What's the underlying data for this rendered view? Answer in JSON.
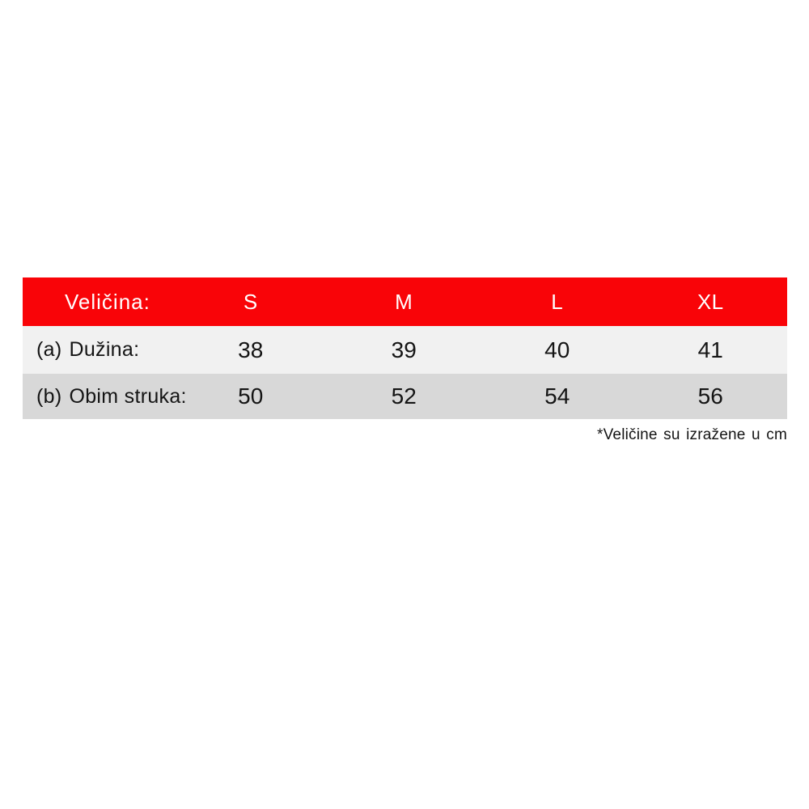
{
  "colors": {
    "page_bg": "#FFFFFF",
    "header_bg": "#F90408",
    "header_text": "#FFFFFF",
    "row_odd_bg": "#F1F1F1",
    "row_even_bg": "#D8D8D8",
    "text": "#141414"
  },
  "table": {
    "header": {
      "label": "Veličina:",
      "columns": [
        "S",
        "M",
        "L",
        "XL"
      ]
    },
    "rows": [
      {
        "prefix": "(a)",
        "label": "Dužina:",
        "values": [
          "38",
          "39",
          "40",
          "41"
        ]
      },
      {
        "prefix": "(b)",
        "label": "Obim struka:",
        "values": [
          "50",
          "52",
          "54",
          "56"
        ]
      }
    ],
    "footnote": "*Veličine su izražene u cm"
  },
  "chart_data": {
    "type": "table",
    "columns": [
      "Veličina:",
      "S",
      "M",
      "L",
      "XL"
    ],
    "rows": [
      [
        "(a) Dužina:",
        38,
        39,
        40,
        41
      ],
      [
        "(b) Obim struka:",
        50,
        52,
        54,
        56
      ]
    ],
    "footnote": "*Veličine su izražene u cm",
    "units": "cm"
  }
}
